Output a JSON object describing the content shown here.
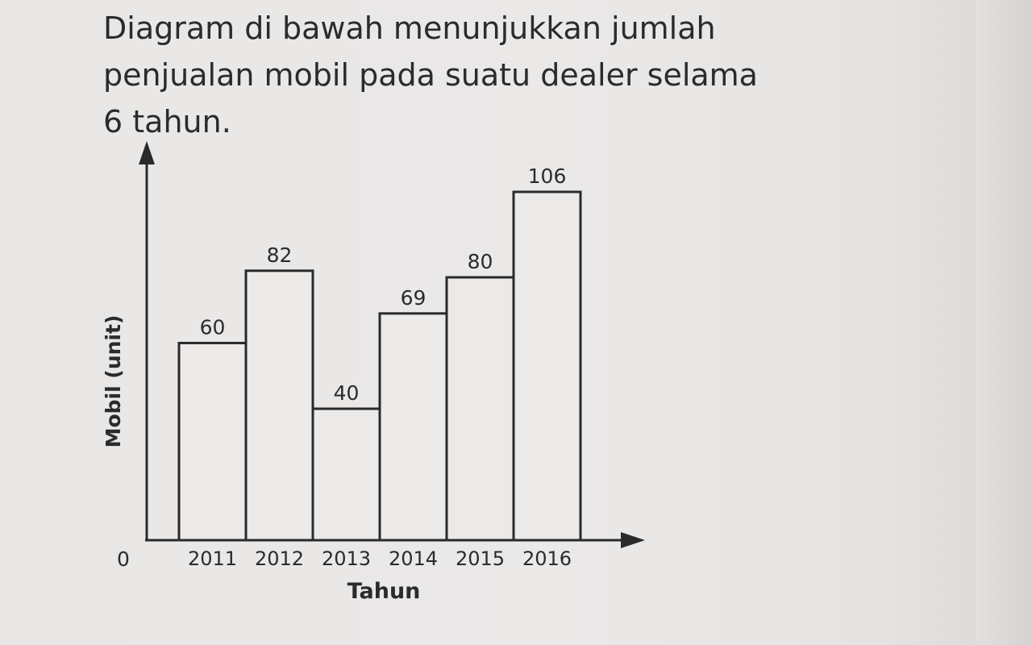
{
  "question": {
    "lines": [
      "Diagram di bawah menunjukkan jumlah",
      "penjualan mobil pada suatu dealer selama",
      "6 tahun."
    ]
  },
  "chart_data": {
    "type": "bar",
    "categories": [
      "2011",
      "2012",
      "2013",
      "2014",
      "2015",
      "2016"
    ],
    "values": [
      60,
      82,
      40,
      69,
      80,
      106
    ],
    "xlabel": "Tahun",
    "ylabel": "Mobil (unit)",
    "origin_label": "0",
    "data_labels": true,
    "grid": false,
    "legend": "none"
  }
}
